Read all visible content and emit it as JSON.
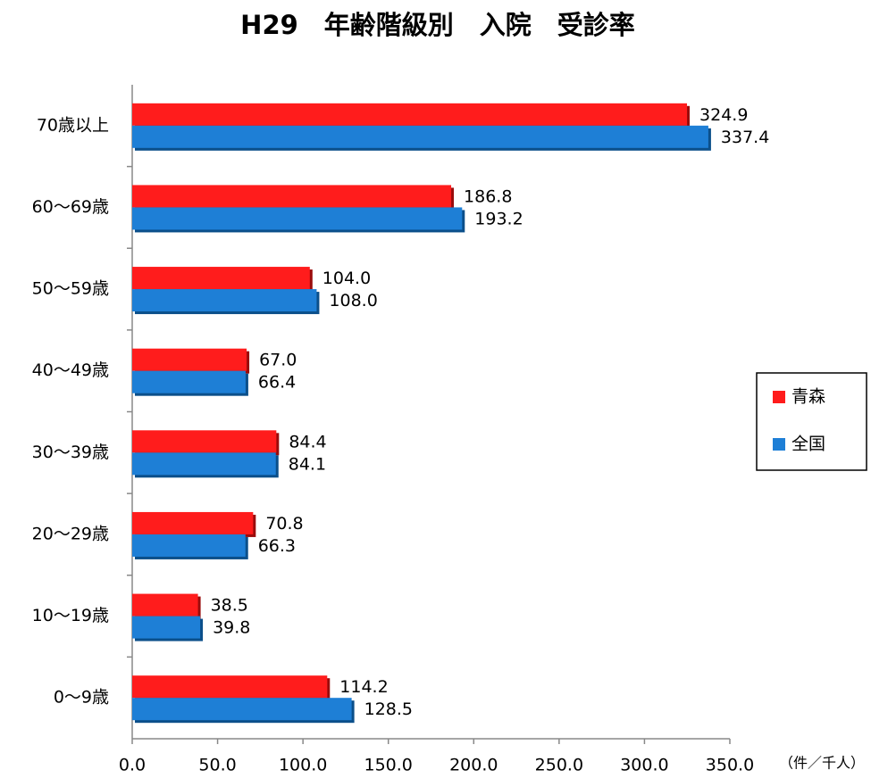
{
  "chart_data": {
    "type": "hbar",
    "title": "H29　年齢階級別　入院　受診率",
    "categories": [
      "70歳以上",
      "60〜69歳",
      "50〜59歳",
      "40〜49歳",
      "30〜39歳",
      "20〜29歳",
      "10〜19歳",
      "0〜9歳"
    ],
    "series": [
      {
        "name": "青森",
        "color": "#ff1c1c",
        "values": [
          324.9,
          186.8,
          104.0,
          67.0,
          84.4,
          70.8,
          38.5,
          114.2
        ],
        "value_labels": [
          "324.9",
          "186.8",
          "104.0",
          "67.0",
          "84.4",
          "70.8",
          "38.5",
          "114.2"
        ]
      },
      {
        "name": "全国",
        "color": "#1e7fd6",
        "values": [
          337.4,
          193.2,
          108.0,
          66.4,
          84.1,
          66.3,
          39.8,
          128.5
        ],
        "value_labels": [
          "337.4",
          "193.2",
          "108.0",
          "66.4",
          "84.1",
          "66.3",
          "39.8",
          "128.5"
        ]
      }
    ],
    "xlim": [
      0,
      350
    ],
    "xticks": [
      {
        "value": 0,
        "label": "0.0"
      },
      {
        "value": 50,
        "label": "50.0"
      },
      {
        "value": 100,
        "label": "100.0"
      },
      {
        "value": 150,
        "label": "150.0"
      },
      {
        "value": 200,
        "label": "200.0"
      },
      {
        "value": 250,
        "label": "250.0"
      },
      {
        "value": 300,
        "label": "300.0"
      },
      {
        "value": 350,
        "label": "350.0"
      }
    ],
    "x_unit": "（件／千人）",
    "legend": "right"
  }
}
